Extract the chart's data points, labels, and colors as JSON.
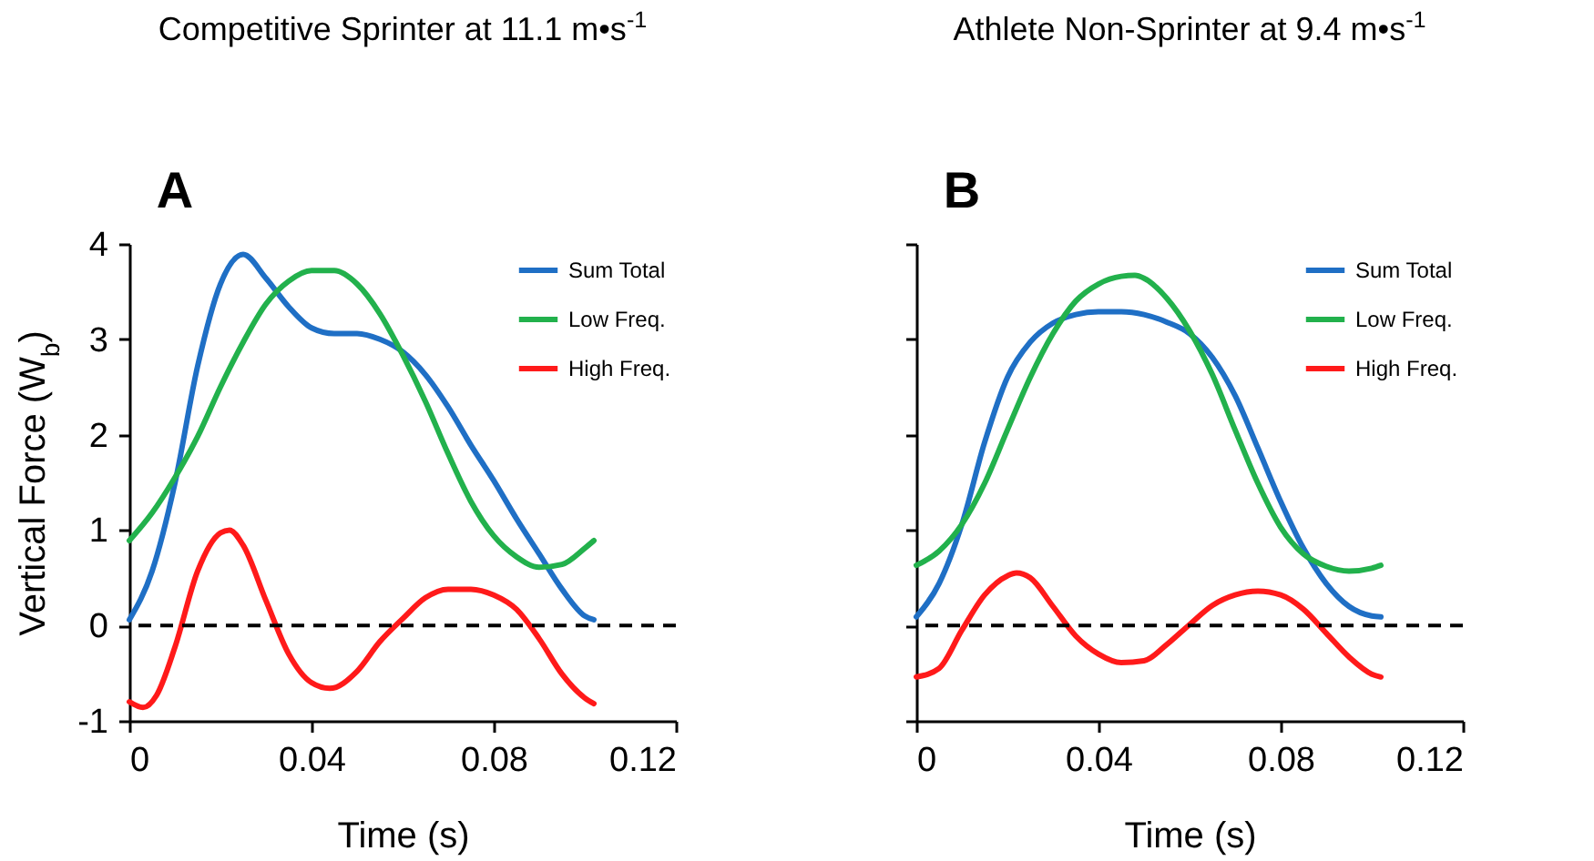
{
  "chart_data": [
    {
      "type": "line",
      "title": "Competitive Sprinter at 11.1 m•s$^{-1}$",
      "xlabel": "Time (s)",
      "ylabel": "Vertical Force (W$_{b}$)",
      "annotations": [
        "A"
      ],
      "xlim": [
        0,
        0.12
      ],
      "xticks": [
        0,
        0.04,
        0.08,
        0.12
      ],
      "ylim": [
        -1,
        4
      ],
      "yticks": [
        -1,
        0,
        1,
        2,
        3,
        4
      ],
      "legend": "top right",
      "grid": false,
      "ref_lines": [
        {
          "axis": "y",
          "value": 0,
          "color": "#000000",
          "line_style": "dashed"
        }
      ],
      "series": [
        {
          "name": "Sum Total",
          "color": "#1f6fc5",
          "x": [
            0,
            0.005,
            0.01,
            0.015,
            0.02,
            0.025,
            0.03,
            0.035,
            0.04,
            0.045,
            0.05,
            0.055,
            0.06,
            0.065,
            0.07,
            0.075,
            0.08,
            0.085,
            0.09,
            0.095,
            0.1,
            0.102
          ],
          "values": [
            0.06,
            0.57,
            1.49,
            2.72,
            3.58,
            3.89,
            3.64,
            3.34,
            3.12,
            3.06,
            3.06,
            3.0,
            2.87,
            2.63,
            2.29,
            1.89,
            1.52,
            1.12,
            0.75,
            0.38,
            0.1,
            0.06
          ]
        },
        {
          "name": "Low Freq.",
          "color": "#22b14c",
          "x": [
            0,
            0.005,
            0.01,
            0.015,
            0.02,
            0.025,
            0.03,
            0.035,
            0.04,
            0.045,
            0.05,
            0.055,
            0.06,
            0.065,
            0.07,
            0.075,
            0.08,
            0.085,
            0.09,
            0.095,
            0.1,
            0.102
          ],
          "values": [
            0.89,
            1.18,
            1.55,
            1.98,
            2.5,
            2.97,
            3.37,
            3.61,
            3.72,
            3.72,
            3.58,
            3.27,
            2.84,
            2.35,
            1.8,
            1.3,
            0.94,
            0.72,
            0.61,
            0.64,
            0.81,
            0.89
          ]
        },
        {
          "name": "High Freq.",
          "color": "#ff1a1a",
          "x": [
            0,
            0.003,
            0.006,
            0.01,
            0.015,
            0.02,
            0.022,
            0.025,
            0.03,
            0.035,
            0.04,
            0.044,
            0.05,
            0.055,
            0.06,
            0.065,
            0.07,
            0.075,
            0.08,
            0.085,
            0.09,
            0.095,
            0.1,
            0.102
          ],
          "values": [
            -0.8,
            -0.86,
            -0.73,
            -0.23,
            0.57,
            0.97,
            1.0,
            0.84,
            0.26,
            -0.3,
            -0.6,
            -0.66,
            -0.48,
            -0.17,
            0.07,
            0.29,
            0.38,
            0.38,
            0.32,
            0.17,
            -0.14,
            -0.51,
            -0.76,
            -0.82
          ]
        }
      ]
    },
    {
      "type": "line",
      "title": "Athlete Non-Sprinter at 9.4 m•s$^{-1}$",
      "xlabel": "Time (s)",
      "annotations": [
        "B"
      ],
      "xlim": [
        0,
        0.12
      ],
      "xticks": [
        0,
        0.04,
        0.08,
        0.12
      ],
      "ylim": [
        -1,
        4
      ],
      "yticks": [
        -1,
        0,
        1,
        2,
        3,
        4
      ],
      "tick_labels": "x",
      "legend": "top right",
      "grid": false,
      "ref_lines": [
        {
          "axis": "y",
          "value": 0,
          "color": "#000000",
          "line_style": "dashed"
        }
      ],
      "series": [
        {
          "name": "Sum Total",
          "color": "#1f6fc5",
          "x": [
            0,
            0.005,
            0.01,
            0.015,
            0.02,
            0.025,
            0.03,
            0.035,
            0.04,
            0.045,
            0.05,
            0.055,
            0.06,
            0.065,
            0.07,
            0.075,
            0.08,
            0.085,
            0.09,
            0.095,
            0.1,
            0.102
          ],
          "values": [
            0.09,
            0.44,
            1.06,
            1.92,
            2.6,
            2.97,
            3.17,
            3.26,
            3.29,
            3.29,
            3.26,
            3.18,
            3.06,
            2.81,
            2.41,
            1.86,
            1.3,
            0.81,
            0.44,
            0.2,
            0.1,
            0.09
          ]
        },
        {
          "name": "Low Freq.",
          "color": "#22b14c",
          "x": [
            0,
            0.005,
            0.01,
            0.015,
            0.02,
            0.025,
            0.03,
            0.035,
            0.04,
            0.045,
            0.048,
            0.05,
            0.055,
            0.06,
            0.065,
            0.07,
            0.075,
            0.08,
            0.085,
            0.09,
            0.095,
            0.1,
            0.102
          ],
          "values": [
            0.63,
            0.78,
            1.06,
            1.49,
            2.05,
            2.6,
            3.06,
            3.4,
            3.58,
            3.66,
            3.67,
            3.64,
            3.43,
            3.09,
            2.63,
            2.05,
            1.49,
            1.03,
            0.75,
            0.62,
            0.57,
            0.6,
            0.63
          ]
        },
        {
          "name": "High Freq.",
          "color": "#ff1a1a",
          "x": [
            0,
            0.005,
            0.01,
            0.015,
            0.02,
            0.022,
            0.025,
            0.03,
            0.035,
            0.04,
            0.045,
            0.05,
            0.055,
            0.06,
            0.065,
            0.07,
            0.075,
            0.08,
            0.085,
            0.09,
            0.095,
            0.1,
            0.102
          ],
          "values": [
            -0.54,
            -0.45,
            -0.05,
            0.32,
            0.52,
            0.55,
            0.5,
            0.2,
            -0.11,
            -0.3,
            -0.39,
            -0.37,
            -0.2,
            0.01,
            0.21,
            0.32,
            0.36,
            0.32,
            0.17,
            -0.08,
            -0.33,
            -0.51,
            -0.54
          ]
        }
      ]
    }
  ]
}
